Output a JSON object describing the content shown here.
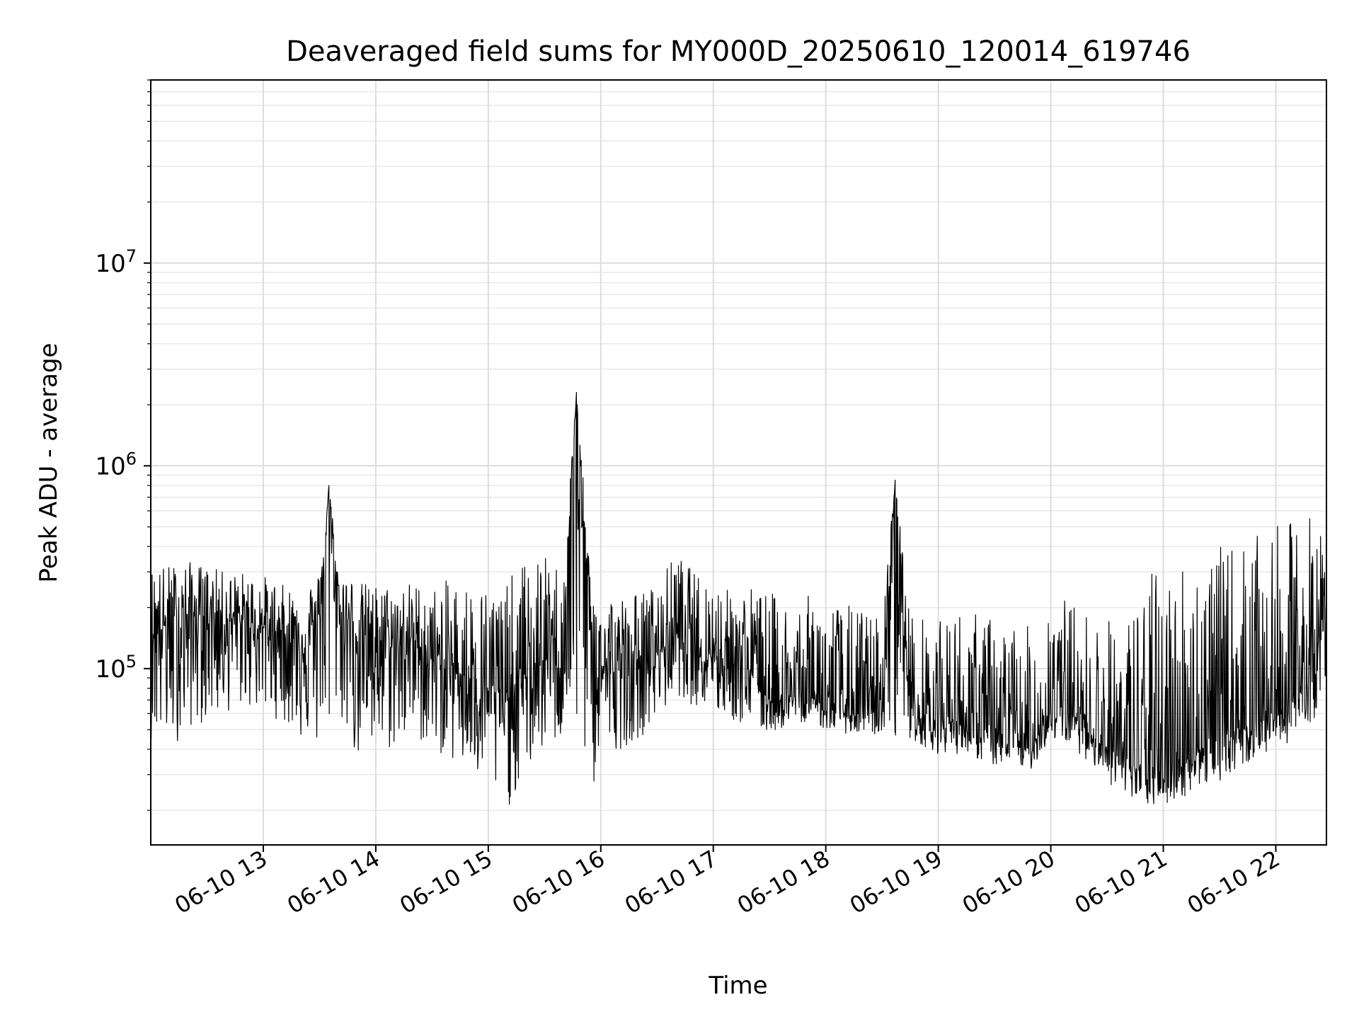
{
  "chart_data": {
    "type": "line",
    "title": "Deaveraged field sums for MY000D_20250610_120014_619746",
    "xlabel": "Time",
    "ylabel": "Peak ADU - average",
    "yscale": "log",
    "ylim": [
      13500,
      80000000
    ],
    "xlim": [
      "2025-06-10 12:00",
      "2025-06-10 22:27"
    ],
    "grid": true,
    "line_color": "#000000",
    "x_ticks": [
      "2025-06-10 13:00",
      "2025-06-10 14:00",
      "2025-06-10 15:00",
      "2025-06-10 16:00",
      "2025-06-10 17:00",
      "2025-06-10 18:00",
      "2025-06-10 19:00",
      "2025-06-10 20:00",
      "2025-06-10 21:00",
      "2025-06-10 22:00"
    ],
    "x_tick_labels": [
      "06-10 13",
      "06-10 14",
      "06-10 15",
      "06-10 16",
      "06-10 17",
      "06-10 18",
      "06-10 19",
      "06-10 20",
      "06-10 21",
      "06-10 22"
    ],
    "y_ticks": [
      {
        "base": "10",
        "exp": "5",
        "value": 100000
      },
      {
        "base": "10",
        "exp": "6",
        "value": 1000000
      },
      {
        "base": "10",
        "exp": "7",
        "value": 10000000
      }
    ],
    "series": [
      {
        "x": [
          "2025-06-10 12:00",
          "2025-06-10 12:10",
          "2025-06-10 12:20",
          "2025-06-10 12:30",
          "2025-06-10 12:40",
          "2025-06-10 12:50",
          "2025-06-10 13:00",
          "2025-06-10 13:10",
          "2025-06-10 13:20",
          "2025-06-10 13:30",
          "2025-06-10 13:35",
          "2025-06-10 13:40",
          "2025-06-10 13:50",
          "2025-06-10 14:00",
          "2025-06-10 14:10",
          "2025-06-10 14:20",
          "2025-06-10 14:30",
          "2025-06-10 14:40",
          "2025-06-10 14:50",
          "2025-06-10 15:00",
          "2025-06-10 15:10",
          "2025-06-10 15:20",
          "2025-06-10 15:30",
          "2025-06-10 15:40",
          "2025-06-10 15:47",
          "2025-06-10 15:55",
          "2025-06-10 16:00",
          "2025-06-10 16:10",
          "2025-06-10 16:20",
          "2025-06-10 16:30",
          "2025-06-10 16:40",
          "2025-06-10 16:50",
          "2025-06-10 17:00",
          "2025-06-10 17:10",
          "2025-06-10 17:20",
          "2025-06-10 17:30",
          "2025-06-10 17:40",
          "2025-06-10 17:50",
          "2025-06-10 18:00",
          "2025-06-10 18:10",
          "2025-06-10 18:20",
          "2025-06-10 18:30",
          "2025-06-10 18:37",
          "2025-06-10 18:45",
          "2025-06-10 19:00",
          "2025-06-10 19:10",
          "2025-06-10 19:20",
          "2025-06-10 19:30",
          "2025-06-10 19:40",
          "2025-06-10 19:50",
          "2025-06-10 20:00",
          "2025-06-10 20:10",
          "2025-06-10 20:20",
          "2025-06-10 20:30",
          "2025-06-10 20:40",
          "2025-06-10 20:50",
          "2025-06-10 21:00",
          "2025-06-10 21:10",
          "2025-06-10 21:20",
          "2025-06-10 21:30",
          "2025-06-10 21:40",
          "2025-06-10 21:50",
          "2025-06-10 22:00",
          "2025-06-10 22:10",
          "2025-06-10 22:20",
          "2025-06-10 22:27"
        ],
        "y": [
          170000,
          160000,
          180000,
          190000,
          175000,
          170000,
          160000,
          150000,
          140000,
          170000,
          800000,
          190000,
          150000,
          140000,
          130000,
          140000,
          110000,
          100000,
          90000,
          80000,
          70000,
          90000,
          110000,
          120000,
          2300000,
          110000,
          100000,
          95000,
          110000,
          120000,
          150000,
          130000,
          120000,
          110000,
          100000,
          70000,
          70000,
          75000,
          65000,
          60000,
          60000,
          60000,
          850000,
          60000,
          55000,
          55000,
          50000,
          45000,
          42000,
          40000,
          65000,
          60000,
          50000,
          40000,
          35000,
          30000,
          28000,
          35000,
          40000,
          45000,
          50000,
          55000,
          60000,
          70000,
          100000,
          180000
        ],
        "y_low": [
          45000,
          40000,
          50000,
          55000,
          60000,
          65000,
          60000,
          55000,
          45000,
          40000,
          60000,
          60000,
          35000,
          35000,
          40000,
          45000,
          40000,
          35000,
          30000,
          25000,
          20000,
          30000,
          40000,
          45000,
          60000,
          22000,
          40000,
          40000,
          45000,
          55000,
          75000,
          65000,
          60000,
          55000,
          50000,
          48000,
          52000,
          55000,
          50000,
          48000,
          47000,
          47000,
          47000,
          45000,
          38000,
          38000,
          36000,
          33000,
          33000,
          32000,
          45000,
          42000,
          35000,
          28000,
          22000,
          21000,
          21000,
          23000,
          26000,
          28000,
          32000,
          36000,
          40000,
          45000,
          55000,
          90000
        ],
        "y_high": [
          320000,
          330000,
          340000,
          320000,
          300000,
          300000,
          290000,
          260000,
          250000,
          300000,
          800000,
          330000,
          270000,
          260000,
          260000,
          270000,
          250000,
          280000,
          270000,
          260000,
          270000,
          350000,
          360000,
          320000,
          2300000,
          260000,
          260000,
          230000,
          240000,
          260000,
          380000,
          300000,
          280000,
          240000,
          260000,
          240000,
          220000,
          230000,
          220000,
          210000,
          200000,
          180000,
          850000,
          190000,
          170000,
          200000,
          190000,
          180000,
          170000,
          160000,
          250000,
          220000,
          190000,
          180000,
          170000,
          300000,
          320000,
          360000,
          380000,
          400000,
          420000,
          450000,
          500000,
          550000,
          600000,
          420000
        ]
      }
    ]
  }
}
